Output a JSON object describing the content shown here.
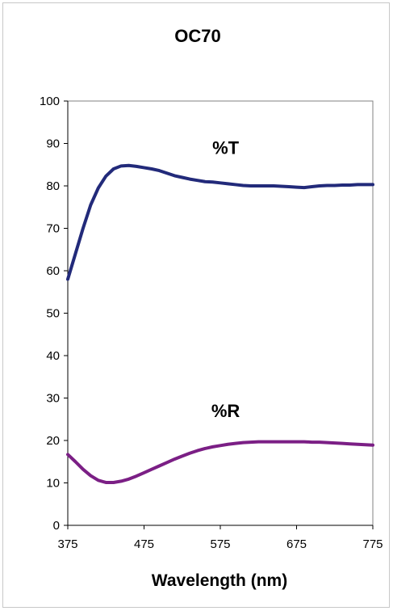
{
  "chart_data": {
    "type": "line",
    "title": "OC70",
    "xlabel": "Wavelength (nm)",
    "ylabel": "",
    "xlim": [
      375,
      775
    ],
    "ylim": [
      0,
      100
    ],
    "xticks": [
      375,
      475,
      575,
      675,
      775
    ],
    "yticks": [
      0,
      10,
      20,
      30,
      40,
      50,
      60,
      70,
      80,
      90,
      100
    ],
    "grid": false,
    "series": [
      {
        "name": "%T",
        "color": "#222a7a",
        "x": [
          375,
          385,
          395,
          405,
          415,
          425,
          435,
          445,
          455,
          465,
          475,
          485,
          495,
          505,
          515,
          525,
          535,
          545,
          555,
          565,
          575,
          585,
          595,
          605,
          615,
          625,
          635,
          645,
          655,
          665,
          675,
          685,
          695,
          705,
          715,
          725,
          735,
          745,
          755,
          765,
          775
        ],
        "y": [
          58,
          64,
          70,
          75.5,
          79.5,
          82.3,
          84,
          84.7,
          84.8,
          84.6,
          84.3,
          84,
          83.6,
          83,
          82.4,
          82,
          81.6,
          81.3,
          81,
          80.9,
          80.7,
          80.5,
          80.3,
          80.1,
          80,
          80,
          80,
          80,
          79.9,
          79.8,
          79.7,
          79.6,
          79.8,
          80,
          80.1,
          80.1,
          80.2,
          80.2,
          80.3,
          80.3,
          80.3
        ]
      },
      {
        "name": "%R",
        "color": "#7b1f85",
        "x": [
          375,
          385,
          395,
          405,
          415,
          425,
          435,
          445,
          455,
          465,
          475,
          485,
          495,
          505,
          515,
          525,
          535,
          545,
          555,
          565,
          575,
          585,
          595,
          605,
          615,
          625,
          635,
          645,
          655,
          665,
          675,
          685,
          695,
          705,
          715,
          725,
          735,
          745,
          755,
          765,
          775
        ],
        "y": [
          16.7,
          15,
          13.2,
          11.7,
          10.6,
          10.1,
          10.1,
          10.4,
          10.9,
          11.6,
          12.4,
          13.2,
          14,
          14.8,
          15.6,
          16.3,
          17,
          17.6,
          18.1,
          18.5,
          18.8,
          19.1,
          19.3,
          19.5,
          19.6,
          19.7,
          19.7,
          19.7,
          19.7,
          19.7,
          19.7,
          19.7,
          19.6,
          19.6,
          19.5,
          19.4,
          19.3,
          19.2,
          19.1,
          19,
          18.9
        ]
      }
    ],
    "annotations": [
      {
        "text": "%T",
        "x": 582,
        "y": 87.5
      },
      {
        "text": "%R",
        "x": 582,
        "y": 25.5
      }
    ]
  }
}
